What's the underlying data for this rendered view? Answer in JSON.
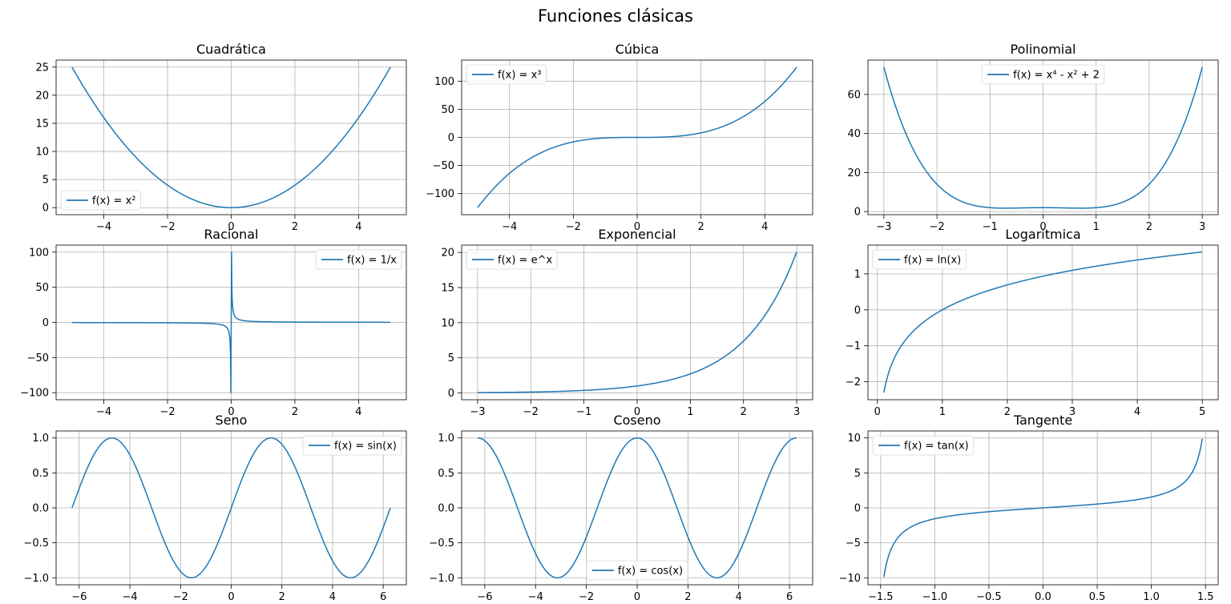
{
  "figure": {
    "title": "Funciones clásicas"
  },
  "style": {
    "line_color": "#1f77b4",
    "grid_color": "#b0b0b0",
    "axis_color": "#000000"
  },
  "chart_data": [
    {
      "type": "line",
      "title": "Cuadrática",
      "legend": "f(x) = x²",
      "legend_loc": "lower-left",
      "func": "square",
      "xlim": [
        -5.5,
        5.5
      ],
      "ylim": [
        -1.25,
        26.25
      ],
      "xticks": [
        -4,
        -2,
        0,
        2,
        4
      ],
      "xtick_labels": [
        "−4",
        "−2",
        "0",
        "2",
        "4"
      ],
      "yticks": [
        0,
        5,
        10,
        15,
        20,
        25
      ],
      "ytick_labels": [
        "0",
        "5",
        "10",
        "15",
        "20",
        "25"
      ],
      "x": [
        -5,
        -4,
        -3,
        -2,
        -1,
        0,
        1,
        2,
        3,
        4,
        5
      ],
      "y": [
        25,
        16,
        9,
        4,
        1,
        0,
        1,
        4,
        9,
        16,
        25
      ],
      "grid": true
    },
    {
      "type": "line",
      "title": "Cúbica",
      "legend": "f(x) = x³",
      "legend_loc": "upper-left",
      "func": "cube",
      "xlim": [
        -5.5,
        5.5
      ],
      "ylim": [
        -137.5,
        137.5
      ],
      "xticks": [
        -4,
        -2,
        0,
        2,
        4
      ],
      "xtick_labels": [
        "−4",
        "−2",
        "0",
        "2",
        "4"
      ],
      "yticks": [
        -100,
        -50,
        0,
        50,
        100
      ],
      "ytick_labels": [
        "−100",
        "−50",
        "0",
        "50",
        "100"
      ],
      "x": [
        -5,
        -4,
        -3,
        -2,
        -1,
        0,
        1,
        2,
        3,
        4,
        5
      ],
      "y": [
        -125,
        -64,
        -27,
        -8,
        -1,
        0,
        1,
        8,
        27,
        64,
        125
      ],
      "grid": true
    },
    {
      "type": "line",
      "title": "Polinomial",
      "legend": "f(x) = x⁴ - x² + 2",
      "legend_loc": "upper-center",
      "func": "quartic",
      "xlim": [
        -3.3,
        3.3
      ],
      "ylim": [
        -1.6,
        77.6
      ],
      "xticks": [
        -3,
        -2,
        -1,
        0,
        1,
        2,
        3
      ],
      "xtick_labels": [
        "−3",
        "−2",
        "−1",
        "0",
        "1",
        "2",
        "3"
      ],
      "yticks": [
        0,
        20,
        40,
        60
      ],
      "ytick_labels": [
        "0",
        "20",
        "40",
        "60"
      ],
      "x": [
        -3,
        -2,
        -1,
        0,
        1,
        2,
        3
      ],
      "y": [
        74,
        14,
        2,
        2,
        2,
        14,
        74
      ],
      "grid": true
    },
    {
      "type": "line",
      "title": "Racional",
      "legend": "f(x) = 1/x",
      "legend_loc": "upper-right",
      "func": "reciprocal",
      "xlim": [
        -5.5,
        5.5
      ],
      "ylim": [
        -110,
        110
      ],
      "xticks": [
        -4,
        -2,
        0,
        2,
        4
      ],
      "xtick_labels": [
        "−4",
        "−2",
        "0",
        "2",
        "4"
      ],
      "yticks": [
        -100,
        -50,
        0,
        50,
        100
      ],
      "ytick_labels": [
        "−100",
        "−50",
        "0",
        "50",
        "100"
      ],
      "x": [
        -5,
        -1,
        -0.1,
        -0.01,
        0.01,
        0.1,
        1,
        5
      ],
      "y": [
        -0.2,
        -1,
        -10,
        -100,
        100,
        10,
        1,
        0.2
      ],
      "grid": true
    },
    {
      "type": "line",
      "title": "Exponencial",
      "legend": "f(x) = e^x",
      "legend_loc": "upper-left",
      "func": "exp",
      "xlim": [
        -3.3,
        3.3
      ],
      "ylim": [
        -0.96,
        21.04
      ],
      "xticks": [
        -3,
        -2,
        -1,
        0,
        1,
        2,
        3
      ],
      "xtick_labels": [
        "−3",
        "−2",
        "−1",
        "0",
        "1",
        "2",
        "3"
      ],
      "yticks": [
        0,
        5,
        10,
        15,
        20
      ],
      "ytick_labels": [
        "0",
        "5",
        "10",
        "15",
        "20"
      ],
      "x": [
        -3,
        -2,
        -1,
        0,
        1,
        2,
        3
      ],
      "y": [
        0.05,
        0.14,
        0.37,
        1,
        2.72,
        7.39,
        20.09
      ],
      "grid": true
    },
    {
      "type": "line",
      "title": "Logarítmica",
      "legend": "f(x) = ln(x)",
      "legend_loc": "upper-left",
      "func": "log",
      "xmin": 0.1,
      "xlim": [
        -0.145,
        5.245
      ],
      "ylim": [
        -2.5,
        1.8
      ],
      "xticks": [
        0,
        1,
        2,
        3,
        4,
        5
      ],
      "xtick_labels": [
        "0",
        "1",
        "2",
        "3",
        "4",
        "5"
      ],
      "yticks": [
        -2,
        -1,
        0,
        1
      ],
      "ytick_labels": [
        "−2",
        "−1",
        "0",
        "1"
      ],
      "x": [
        0.1,
        0.5,
        1,
        2,
        3,
        4,
        5
      ],
      "y": [
        -2.3,
        -0.69,
        0,
        0.69,
        1.1,
        1.39,
        1.61
      ],
      "grid": true
    },
    {
      "type": "line",
      "title": "Seno",
      "legend": "f(x) = sin(x)",
      "legend_loc": "upper-right",
      "func": "sin",
      "xlim": [
        -6.912,
        6.912
      ],
      "ylim": [
        -1.1,
        1.1
      ],
      "xticks": [
        -6,
        -4,
        -2,
        0,
        2,
        4,
        6
      ],
      "xtick_labels": [
        "−6",
        "−4",
        "−2",
        "0",
        "2",
        "4",
        "6"
      ],
      "yticks": [
        -1,
        -0.5,
        0,
        0.5,
        1
      ],
      "ytick_labels": [
        "−1.0",
        "−0.5",
        "0.0",
        "0.5",
        "1.0"
      ],
      "x": [
        -6.28,
        -4.71,
        -3.14,
        -1.57,
        0,
        1.57,
        3.14,
        4.71,
        6.28
      ],
      "y": [
        0,
        1,
        0,
        -1,
        0,
        1,
        0,
        -1,
        0
      ],
      "grid": true
    },
    {
      "type": "line",
      "title": "Coseno",
      "legend": "f(x) = cos(x)",
      "legend_loc": "lower-center",
      "func": "cos",
      "xlim": [
        -6.912,
        6.912
      ],
      "ylim": [
        -1.1,
        1.1
      ],
      "xticks": [
        -6,
        -4,
        -2,
        0,
        2,
        4,
        6
      ],
      "xtick_labels": [
        "−6",
        "−4",
        "−2",
        "0",
        "2",
        "4",
        "6"
      ],
      "yticks": [
        -1,
        -0.5,
        0,
        0.5,
        1
      ],
      "ytick_labels": [
        "−1.0",
        "−0.5",
        "0.0",
        "0.5",
        "1.0"
      ],
      "x": [
        -6.28,
        -4.71,
        -3.14,
        -1.57,
        0,
        1.57,
        3.14,
        4.71,
        6.28
      ],
      "y": [
        1,
        0,
        -1,
        0,
        1,
        0,
        -1,
        0,
        1
      ],
      "grid": true
    },
    {
      "type": "line",
      "title": "Tangente",
      "legend": "f(x) = tan(x)",
      "legend_loc": "upper-left",
      "func": "tan",
      "xlim": [
        -1.617,
        1.617
      ],
      "ylim": [
        -11,
        11
      ],
      "xticks": [
        -1.5,
        -1,
        -0.5,
        0,
        0.5,
        1,
        1.5
      ],
      "xtick_labels": [
        "−1.5",
        "−1.0",
        "−0.5",
        "0.0",
        "0.5",
        "1.0",
        "1.5"
      ],
      "yticks": [
        -10,
        -5,
        0,
        5,
        10
      ],
      "ytick_labels": [
        "−10",
        "−5",
        "0",
        "5",
        "10"
      ],
      "x": [
        -1.47,
        -1,
        -0.5,
        0,
        0.5,
        1,
        1.47
      ],
      "y": [
        -10,
        -1.56,
        -0.55,
        0,
        0.55,
        1.56,
        10
      ],
      "grid": true
    }
  ]
}
